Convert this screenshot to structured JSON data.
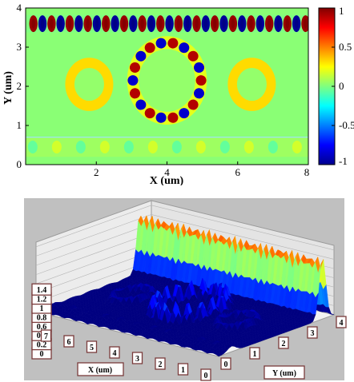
{
  "chart_data": [
    {
      "type": "heatmap",
      "xlabel": "X (um)",
      "ylabel": "Y (um)",
      "xlim": [
        0,
        8
      ],
      "ylim": [
        0,
        4
      ],
      "x_ticks": [
        2,
        4,
        6,
        8
      ],
      "y_ticks": [
        0,
        1,
        2,
        3,
        4
      ],
      "x_tick_labels": [
        "2",
        "4",
        "6",
        "8"
      ],
      "y_tick_labels": [
        "0",
        "1",
        "2",
        "3",
        "4"
      ],
      "colorbar": {
        "range": [
          -1,
          1
        ],
        "ticks": [
          1,
          0.5,
          0,
          -0.5,
          -1
        ],
        "tick_labels": [
          "1",
          "0.5",
          "0",
          "-0.5",
          "-1"
        ],
        "colormap": "jet"
      },
      "structures": [
        {
          "name": "top-waveguide",
          "y_center": 3.6,
          "width": 0.45,
          "field_lobes": 31
        },
        {
          "name": "center-ring",
          "cx": 4.0,
          "cy": 2.15,
          "r_outer": 1.13,
          "r_inner": 0.8,
          "field_lobes": 18
        },
        {
          "name": "left-ring",
          "cx": 1.8,
          "cy": 2.05,
          "r_outer": 0.68,
          "r_inner": 0.42
        },
        {
          "name": "right-ring",
          "cx": 6.4,
          "cy": 2.05,
          "r_outer": 0.68,
          "r_inner": 0.42
        },
        {
          "name": "bottom-waveguide",
          "y_center": 0.45,
          "width": 0.5
        }
      ]
    },
    {
      "type": "surface",
      "z_ticks": [
        0,
        0.2,
        0.4,
        0.6,
        0.8,
        1,
        1.2,
        1.4
      ],
      "z_tick_labels": [
        "0",
        "0.2",
        "0.4",
        "0.6",
        "0.8",
        "1",
        "1.2",
        "1.4"
      ],
      "x_ticks": [
        0,
        1,
        2,
        3,
        4,
        5,
        6,
        7
      ],
      "x_tick_labels": [
        "0",
        "1",
        "2",
        "3",
        "4",
        "5",
        "6",
        "7"
      ],
      "y_ticks": [
        0,
        1,
        2,
        3,
        4
      ],
      "y_tick_labels": [
        "0",
        "1",
        "2",
        "3",
        "4"
      ],
      "xlabel": "X (um)",
      "ylabel": "Y (um)",
      "peak_ridge_height": 1.4,
      "ridge_peaks": 27
    }
  ]
}
